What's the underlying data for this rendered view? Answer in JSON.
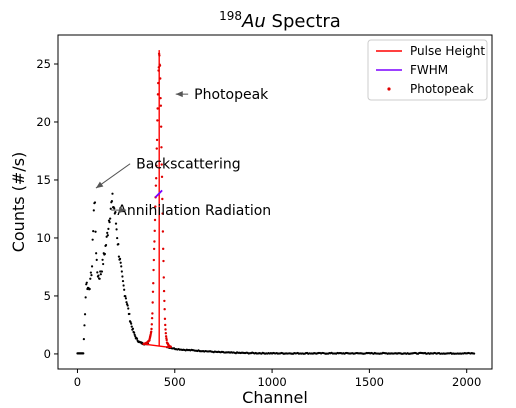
{
  "chart_data": {
    "type": "scatter",
    "title_base": "198",
    "title_italic": "Au",
    "title_rest": " Spectra",
    "xlabel": "Channel",
    "ylabel": "Counts (#/s)",
    "xlim": [
      -100,
      2130
    ],
    "ylim": [
      -1.3,
      27.5
    ],
    "xticks": [
      0,
      500,
      1000,
      1500,
      2000
    ],
    "yticks": [
      0,
      5,
      10,
      15,
      20,
      25
    ],
    "grid": false,
    "legend_position": "top-right",
    "colors": {
      "spectrum": "#000000",
      "pulse_height": "#ff0000",
      "fwhm": "#7b00ff",
      "photopeak": "#e00000"
    },
    "spectrum_profile": [
      [
        0,
        0.05
      ],
      [
        30,
        0.05
      ],
      [
        40,
        4.0
      ],
      [
        45,
        6.2
      ],
      [
        55,
        5.6
      ],
      [
        65,
        6.0
      ],
      [
        75,
        7.6
      ],
      [
        80,
        10.5
      ],
      [
        85,
        13.0
      ],
      [
        90,
        12.8
      ],
      [
        95,
        9.5
      ],
      [
        100,
        7.2
      ],
      [
        110,
        6.6
      ],
      [
        120,
        7.0
      ],
      [
        130,
        7.8
      ],
      [
        140,
        8.8
      ],
      [
        150,
        9.8
      ],
      [
        160,
        11.3
      ],
      [
        170,
        12.6
      ],
      [
        180,
        13.1
      ],
      [
        190,
        12.5
      ],
      [
        200,
        11.0
      ],
      [
        210,
        9.2
      ],
      [
        220,
        7.8
      ],
      [
        230,
        6.5
      ],
      [
        240,
        5.5
      ],
      [
        250,
        4.8
      ],
      [
        260,
        3.9
      ],
      [
        270,
        3.0
      ],
      [
        280,
        2.3
      ],
      [
        290,
        1.8
      ],
      [
        300,
        1.4
      ],
      [
        310,
        1.15
      ],
      [
        320,
        1.0
      ],
      [
        335,
        0.9
      ],
      [
        350,
        0.85
      ],
      [
        365,
        0.9
      ]
    ],
    "tail_profile": [
      [
        460,
        0.6
      ],
      [
        500,
        0.45
      ],
      [
        550,
        0.35
      ],
      [
        600,
        0.3
      ],
      [
        650,
        0.25
      ],
      [
        700,
        0.18
      ],
      [
        760,
        0.12
      ],
      [
        850,
        0.08
      ],
      [
        1000,
        0.05
      ],
      [
        2040,
        0.05
      ]
    ],
    "photopeak_profile": [
      [
        340,
        0.85
      ],
      [
        350,
        0.9
      ],
      [
        360,
        1.0
      ],
      [
        370,
        1.2
      ],
      [
        380,
        2.0
      ],
      [
        385,
        3.5
      ],
      [
        390,
        6.5
      ],
      [
        395,
        9.5
      ],
      [
        400,
        12.5
      ],
      [
        405,
        15.5
      ],
      [
        410,
        19.5
      ],
      [
        415,
        23.5
      ],
      [
        420,
        26.2
      ],
      [
        425,
        24.5
      ],
      [
        430,
        19.5
      ],
      [
        435,
        14.5
      ],
      [
        440,
        9.5
      ],
      [
        445,
        5.5
      ],
      [
        450,
        2.7
      ],
      [
        455,
        1.6
      ],
      [
        460,
        1.0
      ],
      [
        470,
        0.7
      ],
      [
        480,
        0.6
      ]
    ],
    "pulse_height": {
      "peak_channel": 420,
      "peak_counts": 26.2,
      "baseline": [
        [
          340,
          0.85
        ],
        [
          480,
          0.55
        ]
      ]
    },
    "fwhm_segment": [
      [
        400,
        13.5
      ],
      [
        435,
        14.1
      ]
    ],
    "legend": [
      "Pulse Height",
      "FWHM",
      "Photopeak"
    ],
    "annotations": [
      {
        "text": "Photopeak",
        "text_at": [
          790,
          22.4
        ],
        "arrow_to": [
          505,
          22.4
        ]
      },
      {
        "text": "Backscattering",
        "text_at": [
          570,
          16.4
        ],
        "arrow_to": [
          95,
          14.3
        ]
      },
      {
        "text": "Annihilation Radiation",
        "text_at": [
          600,
          12.4
        ],
        "arrow_to": [
          250,
          12.4
        ]
      }
    ]
  }
}
